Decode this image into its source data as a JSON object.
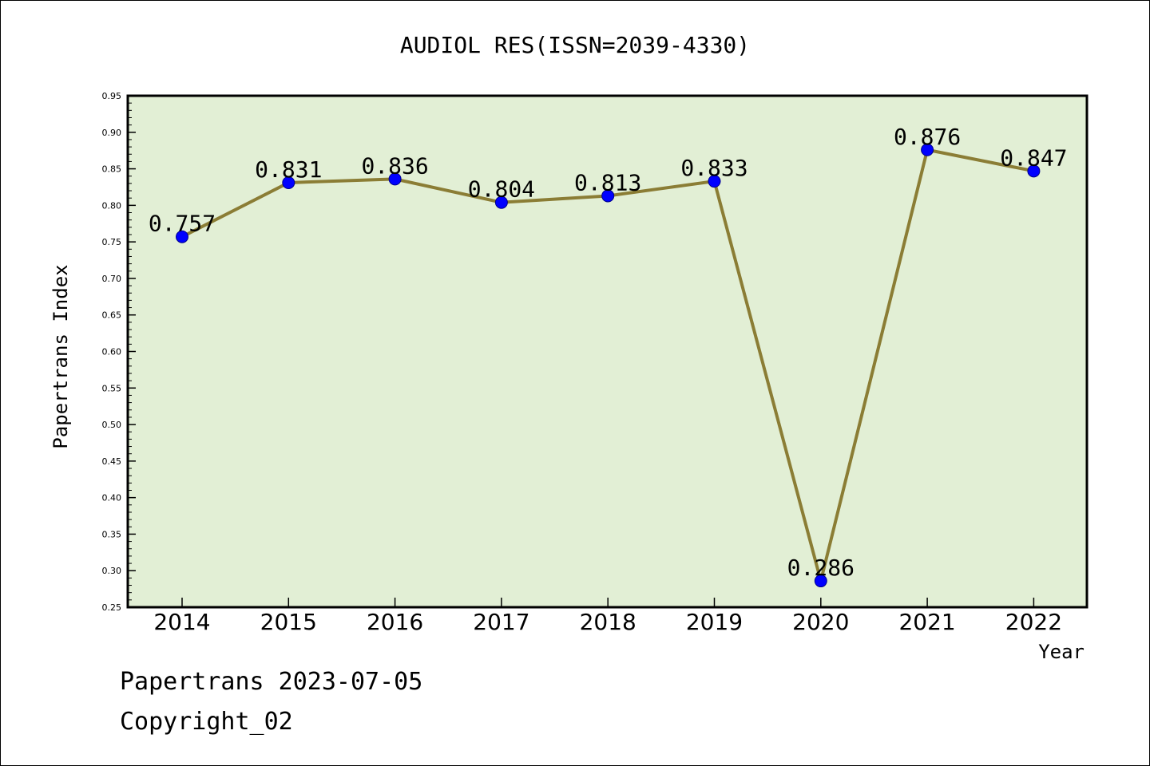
{
  "chart_data": {
    "type": "line",
    "title": "AUDIOL RES(ISSN=2039-4330)",
    "xlabel": "Year",
    "ylabel": "Papertrans Index",
    "categories": [
      "2014",
      "2015",
      "2016",
      "2017",
      "2018",
      "2019",
      "2020",
      "2021",
      "2022"
    ],
    "series": [
      {
        "values": [
          0.757,
          0.831,
          0.836,
          0.804,
          0.813,
          0.833,
          0.286,
          0.876,
          0.847
        ]
      }
    ],
    "data_labels": [
      "0.757",
      "0.831",
      "0.836",
      "0.804",
      "0.813",
      "0.833",
      "0.286",
      "0.876",
      "0.847"
    ],
    "ylim": [
      0.25,
      0.95
    ],
    "yticks": [
      "0.25",
      "0.30",
      "0.35",
      "0.40",
      "0.45",
      "0.50",
      "0.55",
      "0.60",
      "0.65",
      "0.70",
      "0.75",
      "0.80",
      "0.85",
      "0.90",
      "0.95"
    ],
    "grid": false,
    "legend": "none",
    "colors": {
      "plot_background": "#e2efd5",
      "line": "#8b7d35",
      "marker": "#0000ff"
    }
  },
  "footer": {
    "date_line": "Papertrans 2023-07-05",
    "copyright": "Copyright_02"
  }
}
